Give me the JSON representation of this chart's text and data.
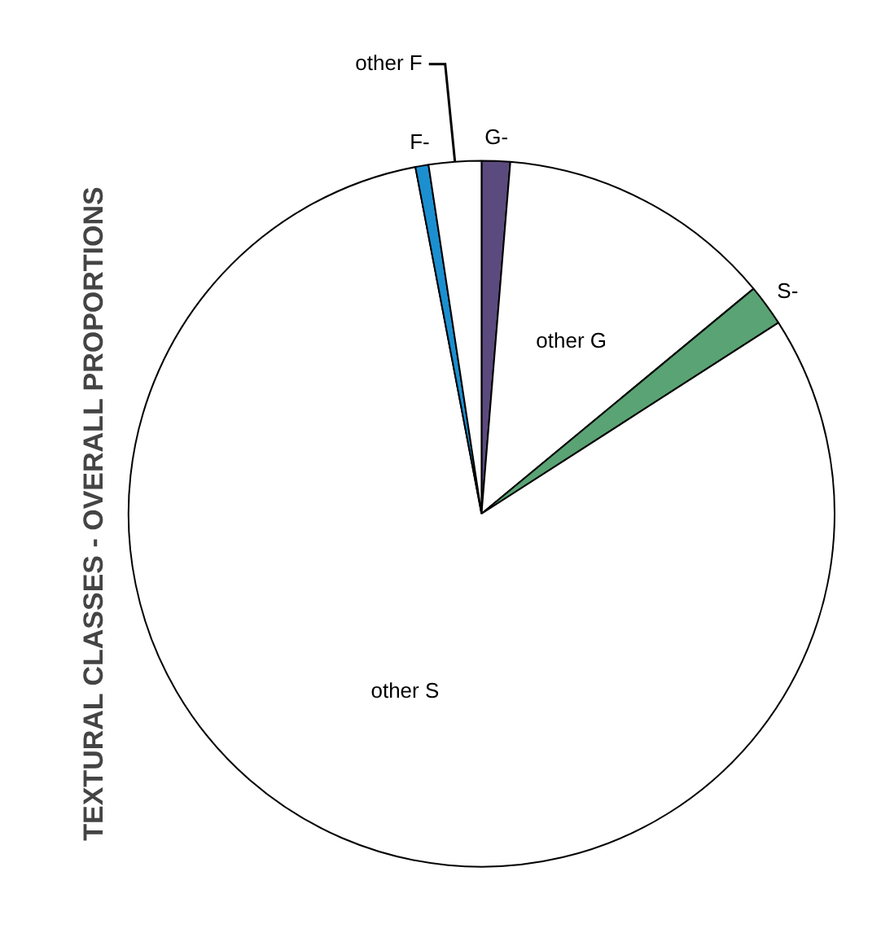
{
  "chart_data": {
    "type": "pie",
    "title": "TEXTURAL CLASSES - OVERALL PROPORTIONS",
    "categories": [
      "G-",
      "other G",
      "S-",
      "other S",
      "F-",
      "other F"
    ],
    "values": [
      1.3,
      12.7,
      1.9,
      81.1,
      0.6,
      2.4
    ],
    "colors": [
      "#5b4a7d",
      "#ffffff",
      "#5aa374",
      "#ffffff",
      "#1b8fd0",
      "#ffffff"
    ],
    "legend": false
  }
}
